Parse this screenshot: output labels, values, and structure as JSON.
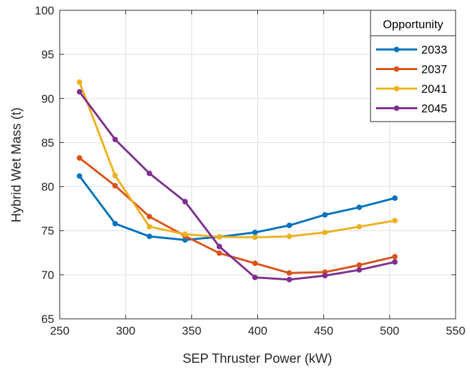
{
  "chart_data": {
    "type": "line",
    "xlabel": "SEP Thruster Power (kW)",
    "ylabel": "Hybrid Wet Mass (t)",
    "xlim": [
      250,
      550
    ],
    "ylim": [
      65,
      100
    ],
    "xticks": [
      250,
      300,
      350,
      400,
      450,
      500,
      550
    ],
    "yticks": [
      65,
      70,
      75,
      80,
      85,
      90,
      95,
      100
    ],
    "grid": true,
    "legend": {
      "title": "Opportunity",
      "placement": "top-right"
    },
    "x": [
      265,
      292,
      318,
      345,
      371,
      398,
      424,
      451,
      477,
      504
    ],
    "series": [
      {
        "name": "2033",
        "color": "#0072BD",
        "values": [
          81.2,
          75.8,
          74.35,
          73.95,
          74.3,
          74.8,
          75.6,
          76.8,
          77.65,
          78.7
        ]
      },
      {
        "name": "2037",
        "color": "#D95319",
        "values": [
          83.25,
          80.1,
          76.6,
          74.4,
          72.45,
          71.3,
          70.2,
          70.3,
          71.1,
          72.05
        ]
      },
      {
        "name": "2041",
        "color": "#EDB120",
        "values": [
          91.85,
          81.25,
          75.45,
          74.6,
          74.3,
          74.25,
          74.35,
          74.8,
          75.45,
          76.15
        ]
      },
      {
        "name": "2045",
        "color": "#7E2F8E",
        "values": [
          90.75,
          85.35,
          81.5,
          78.3,
          73.2,
          69.7,
          69.45,
          69.9,
          70.55,
          71.45
        ]
      }
    ]
  }
}
